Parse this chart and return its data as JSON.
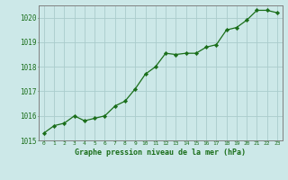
{
  "x": [
    0,
    1,
    2,
    3,
    4,
    5,
    6,
    7,
    8,
    9,
    10,
    11,
    12,
    13,
    14,
    15,
    16,
    17,
    18,
    19,
    20,
    21,
    22,
    23
  ],
  "y": [
    1015.3,
    1015.6,
    1015.7,
    1016.0,
    1015.8,
    1015.9,
    1016.0,
    1016.4,
    1016.6,
    1017.1,
    1017.7,
    1018.0,
    1018.55,
    1018.5,
    1018.55,
    1018.55,
    1018.8,
    1018.9,
    1019.5,
    1019.6,
    1019.9,
    1020.3,
    1020.3,
    1020.2
  ],
  "ylim": [
    1015.0,
    1020.5
  ],
  "yticks": [
    1015,
    1016,
    1017,
    1018,
    1019,
    1020
  ],
  "xticks": [
    0,
    1,
    2,
    3,
    4,
    5,
    6,
    7,
    8,
    9,
    10,
    11,
    12,
    13,
    14,
    15,
    16,
    17,
    18,
    19,
    20,
    21,
    22,
    23
  ],
  "line_color": "#1a6e1a",
  "marker_color": "#1a6e1a",
  "bg_color": "#cce8e8",
  "grid_color": "#aacccc",
  "xlabel": "Graphe pression niveau de la mer (hPa)",
  "xlabel_color": "#1a6e1a",
  "tick_color": "#1a6e1a",
  "border_color": "#808080"
}
